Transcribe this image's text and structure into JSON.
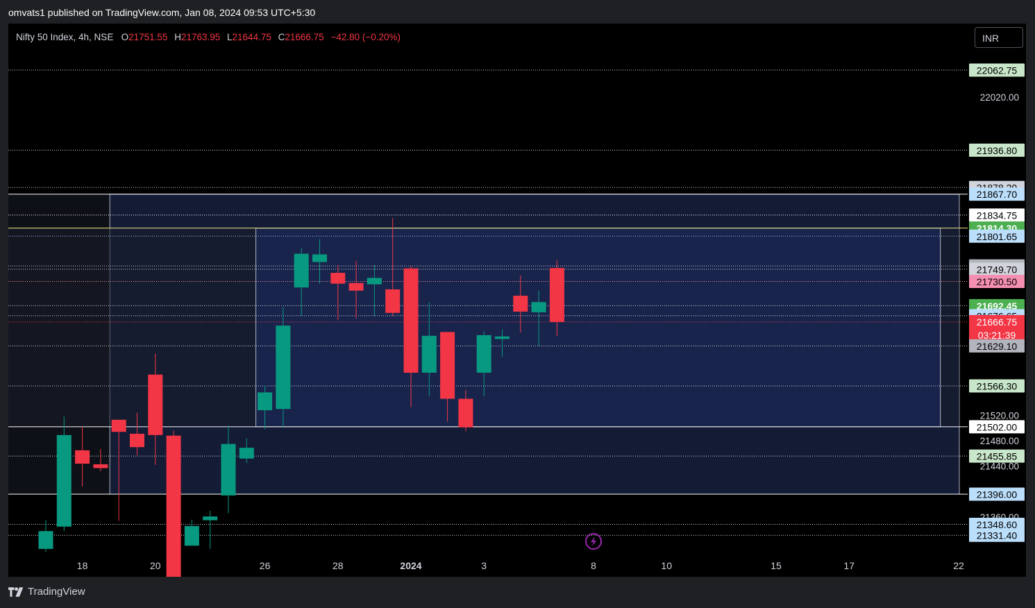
{
  "publish_line": "omvats1 published on TradingView.com, Jan 08, 2024 09:53 UTC+5:30",
  "header": {
    "symbol": "Nifty 50 Index, 4h, NSE",
    "open_label": "O",
    "open": "21751.55",
    "high_label": "H",
    "high": "21763.95",
    "low_label": "L",
    "low": "21644.75",
    "close_label": "C",
    "close": "21666.75",
    "change": "−42.80 (−0.20%)"
  },
  "currency_button": "INR",
  "footer": {
    "brand": "TradingView"
  },
  "colors": {
    "up": "#089981",
    "down": "#f23645",
    "background": "#000000",
    "zone_fill": "#1b2a5c",
    "zone_border": "#b2b5be"
  },
  "chart_data": {
    "type": "candlestick",
    "y_scale": "linear",
    "ylim": [
      21300,
      22090
    ],
    "x_ticks": [
      {
        "label": "18",
        "index": 2
      },
      {
        "label": "20",
        "index": 6
      },
      {
        "label": "26",
        "index": 12
      },
      {
        "label": "28",
        "index": 16
      },
      {
        "label": "2024",
        "index": 20,
        "bold": true
      },
      {
        "label": "3",
        "index": 24
      },
      {
        "label": "8",
        "index": 30
      },
      {
        "label": "10",
        "index": 34
      },
      {
        "label": "15",
        "index": 40
      },
      {
        "label": "17",
        "index": 44
      },
      {
        "label": "22",
        "index": 50
      }
    ],
    "y_ticks": [
      "22020.00",
      "21520.00",
      "21480.00",
      "21440.00",
      "21360.00"
    ],
    "candles": [
      {
        "o": 21310,
        "h": 21355,
        "l": 21305,
        "c": 21338
      },
      {
        "o": 21345,
        "h": 21518,
        "l": 21338,
        "c": 21489
      },
      {
        "o": 21465,
        "h": 21502,
        "l": 21408,
        "c": 21444
      },
      {
        "o": 21443,
        "h": 21467,
        "l": 21432,
        "c": 21437
      },
      {
        "o": 21513,
        "h": 21513,
        "l": 21354,
        "c": 21494
      },
      {
        "o": 21491,
        "h": 21524,
        "l": 21457,
        "c": 21470
      },
      {
        "o": 21584,
        "h": 21617,
        "l": 21442,
        "c": 21489
      },
      {
        "o": 21488,
        "h": 21496,
        "l": 21259,
        "c": 21259
      },
      {
        "o": 21315,
        "h": 21356,
        "l": 21317,
        "c": 21346
      },
      {
        "o": 21355,
        "h": 21370,
        "l": 21310,
        "c": 21361
      },
      {
        "o": 21394,
        "h": 21504,
        "l": 21366,
        "c": 21475
      },
      {
        "o": 21452,
        "h": 21484,
        "l": 21445,
        "c": 21469
      },
      {
        "o": 21528,
        "h": 21567,
        "l": 21498,
        "c": 21556
      },
      {
        "o": 21530,
        "h": 21690,
        "l": 21502,
        "c": 21661
      },
      {
        "o": 21721,
        "h": 21783,
        "l": 21676,
        "c": 21774
      },
      {
        "o": 21761,
        "h": 21797,
        "l": 21727,
        "c": 21773
      },
      {
        "o": 21744,
        "h": 21756,
        "l": 21670,
        "c": 21727
      },
      {
        "o": 21728,
        "h": 21763,
        "l": 21672,
        "c": 21716
      },
      {
        "o": 21726,
        "h": 21756,
        "l": 21676,
        "c": 21736
      },
      {
        "o": 21718,
        "h": 21830,
        "l": 21676,
        "c": 21681
      },
      {
        "o": 21751,
        "h": 21755,
        "l": 21533,
        "c": 21587
      },
      {
        "o": 21587,
        "h": 21698,
        "l": 21550,
        "c": 21645
      },
      {
        "o": 21651,
        "h": 21649,
        "l": 21510,
        "c": 21546
      },
      {
        "o": 21546,
        "h": 21560,
        "l": 21495,
        "c": 21501
      },
      {
        "o": 21587,
        "h": 21652,
        "l": 21550,
        "c": 21646
      },
      {
        "o": 21640,
        "h": 21655,
        "l": 21612,
        "c": 21644
      },
      {
        "o": 21708,
        "h": 21740,
        "l": 21650,
        "c": 21683
      },
      {
        "o": 21682,
        "h": 21716,
        "l": 21629,
        "c": 21698
      },
      {
        "o": 21751.55,
        "h": 21763.95,
        "l": 21644.75,
        "c": 21666.75
      }
    ],
    "zones": [
      {
        "top": 21867.7,
        "bottom": 21396.0,
        "from_index": 4,
        "outlined": true
      },
      {
        "top": 21814.3,
        "bottom": 21502.0,
        "from_index": 12,
        "to_index": 49,
        "outlined": true
      }
    ],
    "horizontal_lines": [
      {
        "price": 22062.75,
        "color": "#d1d4dc"
      },
      {
        "price": 21936.8,
        "color": "#d1d4dc"
      },
      {
        "price": 21878.2,
        "color": "#d1d4dc"
      },
      {
        "price": 21867.7,
        "color": "#ffffff",
        "solid": true
      },
      {
        "price": 21834.75,
        "color": "#ffffff"
      },
      {
        "price": 21814.3,
        "color": "#f5eb8a",
        "solid": true
      },
      {
        "price": 21801.65,
        "color": "#9bbcf2"
      },
      {
        "price": 21754.85,
        "color": "#d1d4dc"
      },
      {
        "price": 21749.7,
        "color": "#d1d4dc"
      },
      {
        "price": 21730.5,
        "color": "#ff8fa0"
      },
      {
        "price": 21692.45,
        "color": "#d1d4dc"
      },
      {
        "price": 21676.65,
        "color": "#d1d4dc"
      },
      {
        "price": 21666.75,
        "color": "#f23645"
      },
      {
        "price": 21629.1,
        "color": "#d1d4dc"
      },
      {
        "price": 21566.3,
        "color": "#d1d4dc"
      },
      {
        "price": 21502.0,
        "color": "#ffffff",
        "solid": true
      },
      {
        "price": 21455.85,
        "color": "#d1d4dc"
      },
      {
        "price": 21396.0,
        "color": "#ffffff",
        "solid": true
      },
      {
        "price": 21348.6,
        "color": "#d1d4dc"
      },
      {
        "price": 21331.4,
        "color": "#d1d4dc"
      }
    ],
    "price_labels": [
      {
        "price": 22062.75,
        "text": "22062.75",
        "bg": "#c8e6c9",
        "fg": "#000000"
      },
      {
        "price": 21936.8,
        "text": "21936.80",
        "bg": "#c8e6c9",
        "fg": "#000000"
      },
      {
        "price": 21878.2,
        "text": "21878.20",
        "bg": "#d1d4dc",
        "fg": "#000000"
      },
      {
        "price": 21867.7,
        "text": "21867.70",
        "bg": "#bbdefb",
        "fg": "#000000"
      },
      {
        "price": 21834.75,
        "text": "21834.75",
        "bg": "#ffffff",
        "fg": "#000000"
      },
      {
        "price": 21814.3,
        "text": "21814.30",
        "bg": "#4caf50",
        "fg": "#ffffff",
        "bold": true
      },
      {
        "price": 21801.65,
        "text": "21801.65",
        "bg": "#bbdefb",
        "fg": "#000000"
      },
      {
        "price": 21754.85,
        "text": "21754.85",
        "bg": "#b2b5be",
        "fg": "#000000"
      },
      {
        "price": 21749.7,
        "text": "21749.70",
        "bg": "#d1d4dc",
        "fg": "#000000"
      },
      {
        "price": 21730.5,
        "text": "21730.50",
        "bg": "#f48fb1",
        "fg": "#000000"
      },
      {
        "price": 21692.45,
        "text": "21692.45",
        "bg": "#4caf50",
        "fg": "#ffffff",
        "bold": true
      },
      {
        "price": 21676.65,
        "text": "21676.65",
        "bg": "#bbdefb",
        "fg": "#000000"
      },
      {
        "price": 21666.75,
        "text": "21666.75",
        "bg": "#f23645",
        "fg": "#ffffff",
        "sub": "03:21:39"
      },
      {
        "price": 21629.1,
        "text": "21629.10",
        "bg": "#b2b5be",
        "fg": "#000000"
      },
      {
        "price": 21566.3,
        "text": "21566.30",
        "bg": "#c8e6c9",
        "fg": "#000000"
      },
      {
        "price": 21502.0,
        "text": "21502.00",
        "bg": "#ffffff",
        "fg": "#000000"
      },
      {
        "price": 21455.85,
        "text": "21455.85",
        "bg": "#c8e6c9",
        "fg": "#000000"
      },
      {
        "price": 21396.0,
        "text": "21396.00",
        "bg": "#bbdefb",
        "fg": "#000000"
      },
      {
        "price": 21348.6,
        "text": "21348.60",
        "bg": "#bbdefb",
        "fg": "#000000"
      },
      {
        "price": 21331.4,
        "text": "21331.40",
        "bg": "#bbdefb",
        "fg": "#000000"
      }
    ],
    "events": [
      {
        "type": "lightning",
        "index": 30
      }
    ]
  }
}
